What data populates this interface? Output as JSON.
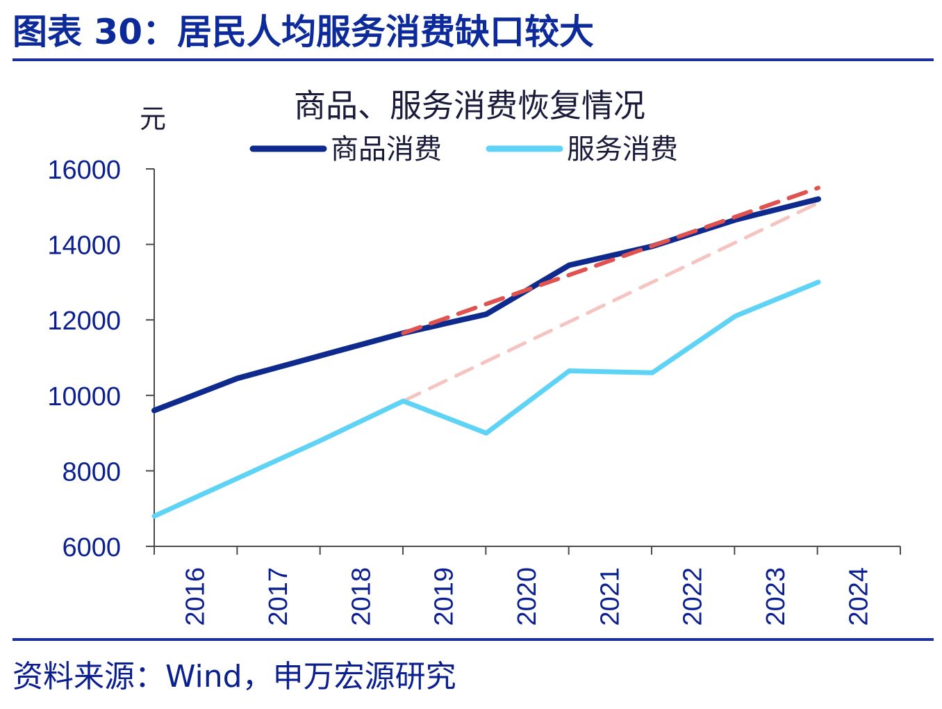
{
  "figure": {
    "title": "图表 30：居民人均服务消费缺口较大",
    "source": "资料来源：Wind，申万宏源研究"
  },
  "chart_data": {
    "type": "line",
    "title": "商品、服务消费恢复情况",
    "ylabel": "元",
    "xlabel": "",
    "ylim": [
      6000,
      16000
    ],
    "yticks": [
      6000,
      8000,
      10000,
      12000,
      14000,
      16000
    ],
    "categories": [
      "2016",
      "2017",
      "2018",
      "2019",
      "2020",
      "2021",
      "2022",
      "2023",
      "2024"
    ],
    "grid": false,
    "legend_position": "top",
    "series": [
      {
        "name": "商品消费",
        "color": "#0d2a8c",
        "style": "solid",
        "values": [
          9600,
          10450,
          11050,
          11650,
          12150,
          13450,
          13950,
          14650,
          15200
        ]
      },
      {
        "name": "服务消费",
        "color": "#5fd3f5",
        "style": "solid",
        "values": [
          6800,
          7800,
          8800,
          9850,
          9000,
          10650,
          10600,
          12100,
          13000
        ]
      }
    ],
    "trend_lines": [
      {
        "color": "#e0524f",
        "style": "dashed",
        "from": "2019",
        "values": [
          11650,
          12420,
          13190,
          13960,
          14730,
          15500
        ]
      },
      {
        "color": "#f6c4c0",
        "style": "dashed",
        "from": "2019",
        "values": [
          9850,
          10900,
          11950,
          13000,
          14050,
          15100
        ]
      }
    ]
  }
}
